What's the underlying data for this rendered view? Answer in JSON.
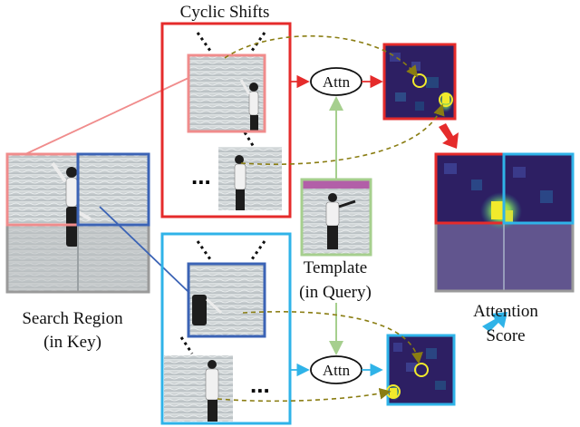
{
  "title": "Cyclic Shifts",
  "search_region": {
    "line1": "Search Region",
    "line2": "(in Key)"
  },
  "template": {
    "line1": "Template",
    "line2": "(in Query)"
  },
  "attn_label": "Attn",
  "ellipsis": "...",
  "attention_score": {
    "line1": "Attention",
    "line2": "Score"
  },
  "colors": {
    "red": "#e52b2b",
    "pink": "#f08c8c",
    "cyan": "#2fb3e8",
    "navy": "#3b63b5",
    "green": "#a6cf8e",
    "olive_dashed": "#8a7d12",
    "heat_dark": "#2d1f63",
    "heat_yellow": "#f1ea2c"
  }
}
